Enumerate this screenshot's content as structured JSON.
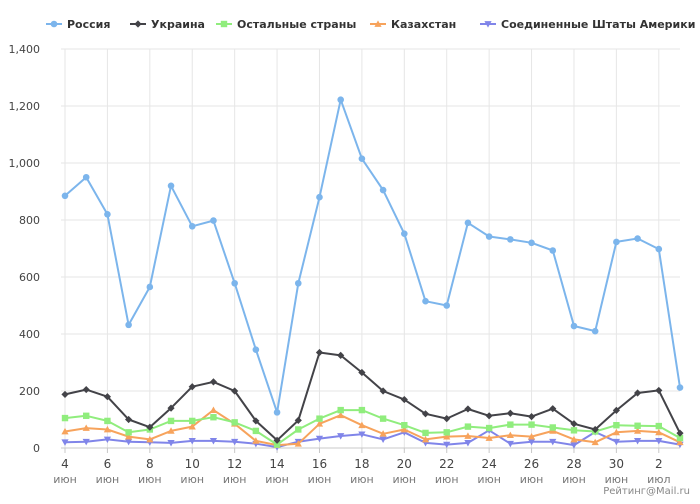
{
  "chart_data": {
    "type": "line",
    "title": "",
    "xlabel": "",
    "ylabel": "",
    "ylim": [
      0,
      1400
    ],
    "y_ticks": [
      "0",
      "200",
      "400",
      "600",
      "800",
      "1,000",
      "1,200",
      "1,400"
    ],
    "grid": true,
    "legend_position": "top",
    "x": [
      "4 июн",
      "5 июн",
      "6 июн",
      "7 июн",
      "8 июн",
      "9 июн",
      "10 июн",
      "11 июн",
      "12 июн",
      "13 июн",
      "14 июн",
      "15 июн",
      "16 июн",
      "17 июн",
      "18 июн",
      "19 июн",
      "20 июн",
      "21 июн",
      "22 июн",
      "23 июн",
      "24 июн",
      "25 июн",
      "26 июн",
      "27 июн",
      "28 июн",
      "29 июн",
      "30 июн",
      "1 июл",
      "2 июл",
      "3 июл"
    ],
    "x_tick_labels": [
      {
        "index": 0,
        "day": "4",
        "month": "июн"
      },
      {
        "index": 2,
        "day": "6",
        "month": "июн"
      },
      {
        "index": 4,
        "day": "8",
        "month": "июн"
      },
      {
        "index": 6,
        "day": "10",
        "month": "июн"
      },
      {
        "index": 8,
        "day": "12",
        "month": "июн"
      },
      {
        "index": 10,
        "day": "14",
        "month": "июн"
      },
      {
        "index": 12,
        "day": "16",
        "month": "июн"
      },
      {
        "index": 14,
        "day": "18",
        "month": "июн"
      },
      {
        "index": 16,
        "day": "20",
        "month": "июн"
      },
      {
        "index": 18,
        "day": "22",
        "month": "июн"
      },
      {
        "index": 20,
        "day": "24",
        "month": "июн"
      },
      {
        "index": 22,
        "day": "26",
        "month": "июн"
      },
      {
        "index": 24,
        "day": "28",
        "month": "июн"
      },
      {
        "index": 26,
        "day": "30",
        "month": "июн"
      },
      {
        "index": 28,
        "day": "2",
        "month": "июл"
      }
    ],
    "series": [
      {
        "name": "Россия",
        "color": "#7cb5ec",
        "marker": "circle",
        "values": [
          885,
          950,
          820,
          432,
          565,
          920,
          778,
          798,
          578,
          345,
          125,
          578,
          880,
          1222,
          1015,
          905,
          752,
          515,
          500,
          790,
          742,
          732,
          720,
          693,
          428,
          410,
          723,
          735,
          698,
          212
        ]
      },
      {
        "name": "Украина",
        "color": "#434348",
        "marker": "diamond",
        "values": [
          188,
          205,
          180,
          100,
          73,
          140,
          215,
          232,
          200,
          95,
          27,
          97,
          335,
          325,
          265,
          200,
          170,
          120,
          103,
          137,
          113,
          122,
          110,
          138,
          85,
          65,
          132,
          193,
          202,
          52
        ]
      },
      {
        "name": "Остальные страны",
        "color": "#90ed7d",
        "marker": "square",
        "values": [
          105,
          113,
          95,
          55,
          65,
          95,
          95,
          108,
          90,
          60,
          12,
          65,
          103,
          133,
          133,
          103,
          80,
          53,
          55,
          75,
          70,
          82,
          82,
          72,
          62,
          58,
          80,
          78,
          77,
          35
        ]
      },
      {
        "name": "Казахстан",
        "color": "#f7a35c",
        "marker": "triangle",
        "values": [
          58,
          70,
          65,
          40,
          30,
          60,
          75,
          133,
          85,
          25,
          10,
          15,
          85,
          115,
          80,
          50,
          65,
          30,
          40,
          42,
          35,
          45,
          40,
          60,
          30,
          20,
          55,
          60,
          55,
          20
        ]
      },
      {
        "name": "Соединенные Штаты Америки",
        "color": "#8085e9",
        "marker": "triangle-down",
        "values": [
          20,
          22,
          30,
          22,
          20,
          18,
          25,
          25,
          22,
          15,
          3,
          22,
          33,
          42,
          48,
          30,
          55,
          18,
          12,
          18,
          62,
          15,
          22,
          22,
          10,
          56,
          22,
          25,
          25,
          12
        ]
      }
    ]
  },
  "credit": "Рейтинг@Mail.ru"
}
